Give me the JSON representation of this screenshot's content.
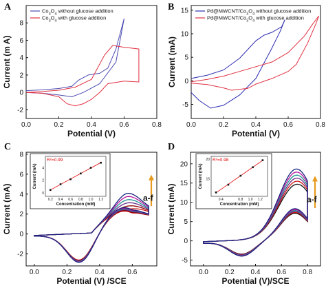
{
  "chart_data": [
    {
      "panel": "A",
      "type": "line",
      "xlabel": "Potential (V)",
      "ylabel": "Current (m A)",
      "xlim": [
        0,
        0.8
      ],
      "ylim": [
        -3,
        10
      ],
      "xticks": [
        "0.0",
        "0.2",
        "0.4",
        "0.6",
        "0.8"
      ],
      "yticks": [
        "-2",
        "0",
        "2",
        "4",
        "6",
        "8"
      ],
      "legend_position": "top-left",
      "series": [
        {
          "name": "Co3O4 without glucose addition",
          "color": "#4b4bb0",
          "x": [
            0.0,
            0.1,
            0.2,
            0.28,
            0.32,
            0.38,
            0.45,
            0.5,
            0.55,
            0.6,
            0.55,
            0.45,
            0.35,
            0.28,
            0.2,
            0.1,
            0.0
          ],
          "y": [
            0.2,
            0.3,
            0.45,
            0.7,
            1.4,
            2.0,
            2.2,
            2.8,
            5.0,
            8.5,
            3.5,
            1.0,
            0.0,
            -0.5,
            -0.3,
            -0.1,
            0.0
          ]
        },
        {
          "name": "Co3O4 with glucose addition",
          "color": "#e03040",
          "x": [
            0.0,
            0.1,
            0.2,
            0.3,
            0.4,
            0.48,
            0.53,
            0.6,
            0.69,
            0.69,
            0.6,
            0.5,
            0.45,
            0.4,
            0.35,
            0.3,
            0.25,
            0.2,
            0.1,
            0.0
          ],
          "y": [
            0.0,
            0.1,
            0.25,
            0.6,
            1.5,
            4.3,
            5.4,
            5.2,
            5.0,
            1.2,
            1.3,
            1.0,
            0.0,
            -0.8,
            -1.3,
            -1.55,
            -1.3,
            -0.5,
            -0.1,
            0.0
          ]
        }
      ]
    },
    {
      "panel": "B",
      "type": "line",
      "xlabel": "Potential (V)",
      "ylabel": "Current (mA)",
      "xlim": [
        0,
        0.8
      ],
      "ylim": [
        -8,
        16
      ],
      "xticks": [
        "0.0",
        "0.2",
        "0.4",
        "0.6",
        "0.8"
      ],
      "yticks": [
        "-5",
        "0",
        "5",
        "10",
        "15"
      ],
      "legend_position": "top-left",
      "series": [
        {
          "name": "Pd@MWCNT/Co3O4 without glucose addition",
          "color": "#2b2bb0",
          "x": [
            0.0,
            0.1,
            0.2,
            0.3,
            0.4,
            0.45,
            0.5,
            0.56,
            0.58,
            0.55,
            0.5,
            0.4,
            0.3,
            0.2,
            0.12,
            0.05,
            0.0
          ],
          "y": [
            0.5,
            1.2,
            2.3,
            4.8,
            8.5,
            9.7,
            10.3,
            11.5,
            13.0,
            10.5,
            7.0,
            0.5,
            -3.0,
            -5.2,
            -5.8,
            -4.2,
            -2.5
          ]
        },
        {
          "name": "Pd@MWCNT/Co3O4 with glucose addition",
          "color": "#e03040",
          "x": [
            0.0,
            0.1,
            0.2,
            0.3,
            0.4,
            0.5,
            0.6,
            0.7,
            0.75,
            0.79,
            0.77,
            0.72,
            0.65,
            0.6,
            0.5,
            0.4,
            0.35,
            0.3,
            0.25,
            0.2,
            0.1,
            0.0
          ],
          "y": [
            -0.2,
            0.3,
            1.0,
            2.0,
            3.0,
            4.0,
            6.0,
            9.5,
            12.0,
            13.8,
            12.0,
            8.0,
            3.5,
            2.0,
            0.5,
            -0.7,
            -1.6,
            -1.8,
            -2.0,
            -1.5,
            -0.8,
            -0.5
          ]
        }
      ]
    },
    {
      "panel": "C",
      "type": "line",
      "xlabel": "Potential (V) /SCE",
      "ylabel": "Current (mA)",
      "xlim": [
        -0.05,
        0.75
      ],
      "ylim": [
        -3.2,
        8.2
      ],
      "xticks": [
        "0.0",
        "0.2",
        "0.4",
        "0.6"
      ],
      "yticks": [
        "-2",
        "0",
        "2",
        "4",
        "6",
        "8"
      ],
      "curve_labels": "a-f",
      "series_colors": [
        "#cc1111",
        "#8b0000",
        "#6a2c8a",
        "#1a9090",
        "#b5179e",
        "#1a237e"
      ],
      "inset": {
        "r2": "R²=0.99",
        "xlabel": "Concentration (mM)",
        "ylabel": "Current (mA)",
        "xticks": [
          "0.2",
          "0.4",
          "0.6",
          "0.8",
          "1.0",
          "1.2"
        ],
        "yticks": [
          "0",
          "2",
          "4"
        ],
        "x": [
          0.2,
          0.4,
          0.6,
          0.8,
          1.0,
          1.2
        ],
        "y": [
          0.5,
          1.4,
          2.2,
          3.1,
          4.0,
          4.8
        ]
      }
    },
    {
      "panel": "D",
      "type": "line",
      "xlabel": "Potential (V)/SCE",
      "ylabel": "Current (mA)",
      "xlim": [
        -0.1,
        0.9
      ],
      "ylim": [
        -6.5,
        23
      ],
      "xticks": [
        "0.0",
        "0.2",
        "0.4",
        "0.6",
        "0.8"
      ],
      "yticks": [
        "-5",
        "0",
        "5",
        "10",
        "15",
        "20"
      ],
      "curve_labels": "a-f",
      "series_colors": [
        "#111111",
        "#cc1111",
        "#6a2c8a",
        "#1a9090",
        "#b5179e",
        "#1a237e"
      ],
      "inset": {
        "r2": "R²=0.98",
        "xlabel": "Concentration (mM)",
        "ylabel": "Current (mA)",
        "xticks": [
          "0.4",
          "0.8",
          "1.0",
          "1.2"
        ],
        "yticks": [
          "10",
          "15",
          "20"
        ],
        "x": [
          0.3,
          0.55,
          0.8,
          1.05,
          1.25
        ],
        "y": [
          11.5,
          13.5,
          15.8,
          18.0,
          19.8
        ]
      }
    }
  ],
  "accent_arrow_color": "#e69a1f"
}
